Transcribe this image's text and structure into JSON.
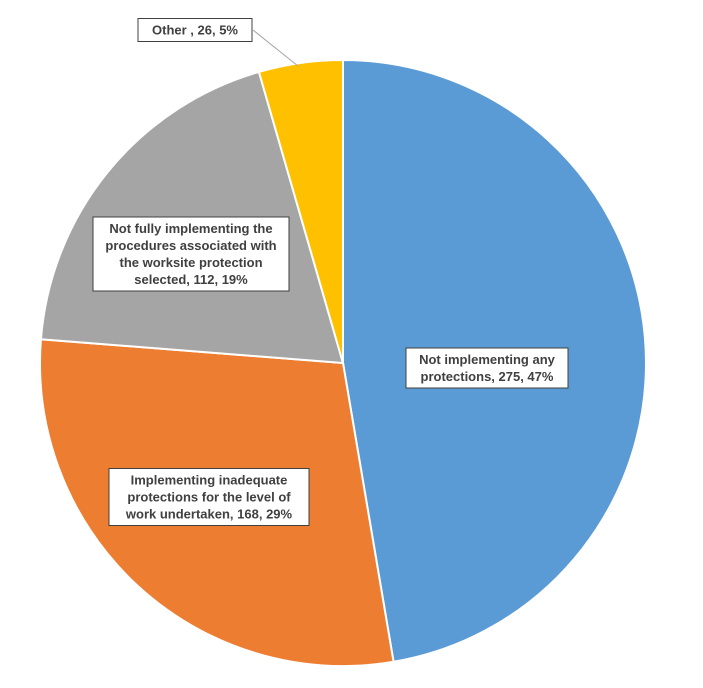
{
  "chart_data": {
    "type": "pie",
    "title": "",
    "slices": [
      {
        "category": "Not implementing any protections",
        "value": 275,
        "percent": 47,
        "color": "#5B9BD5",
        "label_lines": [
          "Not implementing any",
          "protections, 275, 47%"
        ]
      },
      {
        "category": "Implementing inadequate protections for the level of work undertaken",
        "value": 168,
        "percent": 29,
        "color": "#ED7D31",
        "label_lines": [
          "Implementing inadequate",
          "protections for the level of",
          "work undertaken, 168, 29%"
        ]
      },
      {
        "category": "Not fully implementing the procedures associated with the worksite protection selected",
        "value": 112,
        "percent": 19,
        "color": "#A5A5A5",
        "label_lines": [
          "Not fully implementing the",
          "procedures associated with",
          "the worksite protection",
          "selected, 112, 19%"
        ]
      },
      {
        "category": "Other",
        "value": 26,
        "percent": 5,
        "color": "#FFC000",
        "label_lines": [
          "Other , 26, 5%"
        ]
      }
    ],
    "legend": "none",
    "start_angle_deg": 0,
    "direction": "clockwise"
  }
}
